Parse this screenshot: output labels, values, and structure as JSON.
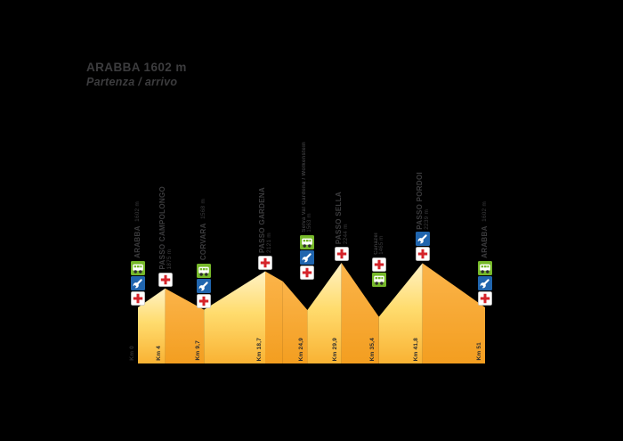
{
  "title": {
    "line1": "ARABBA 1602 m",
    "line2": "Partenza / arrivo"
  },
  "colors": {
    "background": "#000000",
    "label_gray": "#3c3c3e",
    "km_label_gray": "#2d2d2e",
    "ascent_top": "#FFF2C5",
    "ascent_mid": "#FFDC6E",
    "ascent_bottom": "#F9B233",
    "descent_top": "#FBB44A",
    "descent_bottom": "#F39E20",
    "medical_red": "#D5232A",
    "mechanic_blue": "#2065AE",
    "refreshment_green": "#76B82A",
    "icon_white": "#FFFFFF",
    "wheel_dark": "#2B2B2B"
  },
  "chart_data": {
    "type": "area",
    "title": "ARABBA 1602 m — Partenza / arrivo",
    "xlabel": "Km",
    "ylabel": "m",
    "x_range_km": [
      0,
      51
    ],
    "elevation_range_m": [
      1465,
      2244
    ],
    "profile_points": [
      [
        0,
        1602
      ],
      [
        4,
        1875
      ],
      [
        9.7,
        1568
      ],
      [
        18.7,
        2121
      ],
      [
        21.3,
        1975
      ],
      [
        24.9,
        1563
      ],
      [
        29.9,
        2244
      ],
      [
        35.4,
        1465
      ],
      [
        41.8,
        2239
      ],
      [
        51,
        1602
      ]
    ],
    "waypoints": [
      {
        "name": "ARABBA",
        "elev_label": "1602 m",
        "elev": 1602,
        "km": 0,
        "km_label": "Km 0",
        "style": "town",
        "icons": [
          "bus",
          "wrench",
          "medical"
        ]
      },
      {
        "name": "PASSO CAMPOLONGO",
        "elev_label": "1875 m",
        "elev": 1875,
        "km": 4,
        "km_label": "Km 4",
        "style": "pass",
        "icons": [
          "medical"
        ]
      },
      {
        "name": "CORVARA",
        "elev_label": "1568 m",
        "elev": 1568,
        "km": 9.7,
        "km_label": "Km 9,7",
        "style": "town",
        "icons": [
          "bus",
          "wrench",
          "medical"
        ]
      },
      {
        "name": "PASSO GARDENA",
        "elev_label": "2121 m",
        "elev": 2121,
        "km": 18.7,
        "km_label": "Km 18,7",
        "style": "pass",
        "icons": [
          "medical"
        ]
      },
      {
        "name": "Selva Val Gardena / Wolkenstein",
        "elev_label": "1563 m",
        "elev": 1563,
        "km": 24.9,
        "km_label": "Km 24,9",
        "style": "small",
        "icons": [
          "bus",
          "wrench",
          "medical"
        ]
      },
      {
        "name": "PASSO SELLA",
        "elev_label": "2244 m",
        "elev": 2244,
        "km": 29.9,
        "km_label": "Km 29,9",
        "style": "pass",
        "icons": [
          "medical"
        ]
      },
      {
        "name": "Canazei",
        "elev_label": "1465 m",
        "elev": 1465,
        "km": 35.4,
        "km_label": "Km 35,4",
        "style": "small",
        "icons": [
          "medical",
          "bus"
        ]
      },
      {
        "name": "PASSO PORDOI",
        "elev_label": "2239 m",
        "elev": 2239,
        "km": 41.8,
        "km_label": "Km 41,8",
        "style": "pass",
        "icons": [
          "wrench",
          "medical"
        ]
      },
      {
        "name": "ARABBA",
        "elev_label": "1602 m",
        "elev": 1602,
        "km": 51,
        "km_label": "Km 51",
        "style": "town",
        "icons": [
          "bus",
          "wrench",
          "medical"
        ]
      }
    ]
  }
}
